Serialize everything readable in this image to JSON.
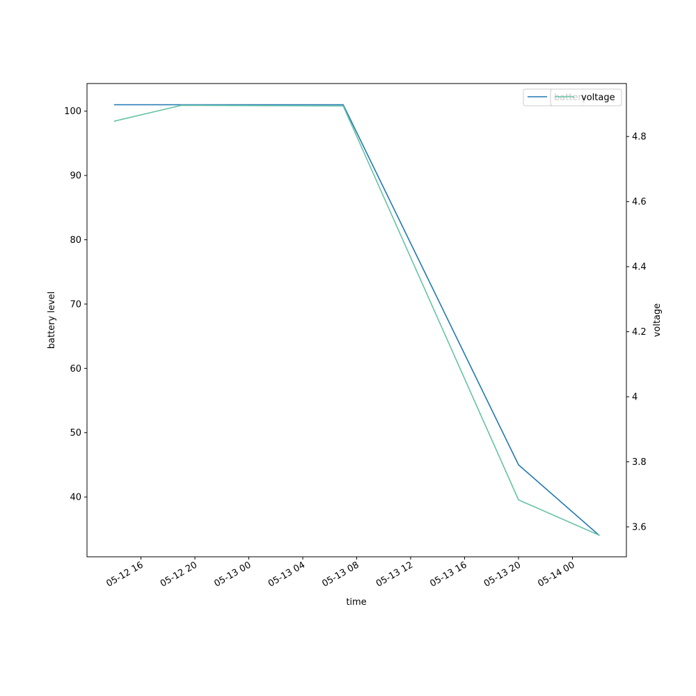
{
  "chart_data": {
    "type": "line",
    "x_label": "time",
    "y_label": "battery level",
    "y2_label": "voltage",
    "x": [
      "05-12 14",
      "05-12 19",
      "05-13 07",
      "05-13 20",
      "05-14 02"
    ],
    "xlim": [
      "05-12 12",
      "05-14 04"
    ],
    "xticks": [
      "05-12 16",
      "05-12 20",
      "05-13 00",
      "05-13 04",
      "05-13 08",
      "05-13 12",
      "05-13 16",
      "05-13 20",
      "05-14 00"
    ],
    "ylim": [
      30.7,
      104.3
    ],
    "yticks": [
      40,
      50,
      60,
      70,
      80,
      90,
      100
    ],
    "y2lim": [
      3.508,
      4.963
    ],
    "y2ticks": [
      3.6,
      3.8,
      4.0,
      4.2,
      4.4,
      4.6,
      4.8
    ],
    "series": [
      {
        "name": "battery",
        "color": "#1f77b4",
        "values": [
          101,
          101,
          101,
          45,
          34
        ]
      },
      {
        "name": "voltage",
        "color": "#66c2a5",
        "axis": "y2",
        "values": [
          4.847,
          4.896,
          4.894,
          3.683,
          3.574
        ]
      }
    ]
  }
}
